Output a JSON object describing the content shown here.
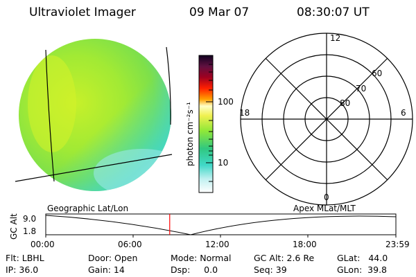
{
  "header": {
    "instrument": "Ultraviolet Imager",
    "date": "09 Mar 07",
    "time": "08:30:07 UT"
  },
  "colorbar": {
    "unit": "photon cm⁻²s⁻¹",
    "ticks": [
      "100",
      "10"
    ]
  },
  "polar": {
    "mlt_labels": {
      "top": "12",
      "left": "18",
      "right": "6",
      "bottom": "0"
    },
    "lat_labels": [
      "60",
      "70",
      "80"
    ]
  },
  "timeline": {
    "left_label": "Geographic Lat/Lon",
    "right_label": "Apex MLat/MLT",
    "y_axis_label": "GC Alt",
    "y_ticks": [
      "9.0",
      "1.8"
    ],
    "x_ticks": [
      "00:00",
      "06:00",
      "12:00",
      "18:00",
      "23:59"
    ],
    "current_time_fraction": 0.354
  },
  "info": {
    "flt": "Flt: LBHL",
    "ip": "IP: 36.0",
    "door": "Door: Open",
    "gain": "Gain: 14",
    "mode": "Mode: Normal",
    "dsp": "Dsp:     0.0",
    "gcalt": "GC Alt: 2.6 Re",
    "seq": "Seq: 39",
    "glat": "GLat:   44.0",
    "glon": "GLon:  39.8"
  },
  "colors": {
    "disk_main": "#a6ee2e",
    "disk_edge": "#40d8c8",
    "time_marker": "#ff0000"
  }
}
